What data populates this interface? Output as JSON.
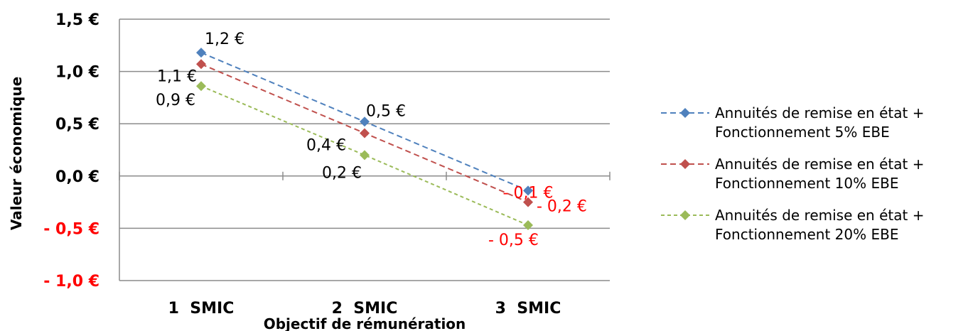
{
  "chart_data": {
    "type": "line",
    "categories": [
      "1  SMIC",
      "2  SMIC",
      "3  SMIC"
    ],
    "xlabel": "Objectif de rémunération",
    "ylabel": "Valeur économique",
    "ylim": [
      -1.0,
      1.5
    ],
    "yticks": [
      {
        "value": 1.5,
        "label": "1,5 €",
        "color": "#000000"
      },
      {
        "value": 1.0,
        "label": "1,0 €",
        "color": "#000000"
      },
      {
        "value": 0.5,
        "label": "0,5 €",
        "color": "#000000"
      },
      {
        "value": 0.0,
        "label": "0,0 €",
        "color": "#000000"
      },
      {
        "value": -0.5,
        "label": "- 0,5 €",
        "color": "#ff0000"
      },
      {
        "value": -1.0,
        "label": "- 1,0 €",
        "color": "#ff0000"
      }
    ],
    "grid": true,
    "legend_position": "right",
    "series": [
      {
        "name_line1": "Annuités de remise en état +",
        "name_line2": "Fonctionnement 5% EBE",
        "color": "#4f81bd",
        "values": [
          1.18,
          0.52,
          -0.14
        ],
        "labels": [
          "1,2 €",
          "0,5 €",
          "- 0,1 €"
        ],
        "label_colors": [
          "#000000",
          "#000000",
          "#ff0000"
        ]
      },
      {
        "name_line1": "Annuités de remise en état +",
        "name_line2": "Fonctionnement 10% EBE",
        "color": "#c0504d",
        "values": [
          1.07,
          0.41,
          -0.25
        ],
        "labels": [
          "1,1 €",
          "0,4 €",
          "- 0,2 €"
        ],
        "label_colors": [
          "#000000",
          "#000000",
          "#ff0000"
        ]
      },
      {
        "name_line1": "Annuités de remise en état +",
        "name_line2": "Fonctionnement 20% EBE",
        "color": "#9bbb59",
        "values": [
          0.86,
          0.2,
          -0.47
        ],
        "labels": [
          "0,9 €",
          "0,2 €",
          "- 0,5 €"
        ],
        "label_colors": [
          "#000000",
          "#000000",
          "#ff0000"
        ]
      }
    ]
  }
}
